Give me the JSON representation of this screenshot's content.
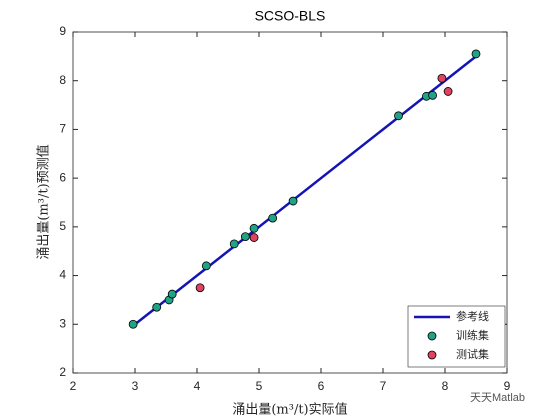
{
  "chart_data": {
    "type": "scatter",
    "title": "SCSO-BLS",
    "x_label": "涌出量(m³/t)实际值",
    "y_label": "涌出量(m³/t)预测值",
    "xlim": [
      2,
      9
    ],
    "ylim": [
      2,
      9
    ],
    "xticks": [
      2,
      3,
      4,
      5,
      6,
      7,
      8,
      9
    ],
    "yticks": [
      2,
      3,
      4,
      5,
      6,
      7,
      8,
      9
    ],
    "legend": "lower right",
    "series": [
      {
        "name": "参考线",
        "mode": "line",
        "color": "#1414b4",
        "x": [
          2.97,
          8.5
        ],
        "values": [
          2.97,
          8.5
        ]
      },
      {
        "name": "训练集",
        "mode": "marker",
        "color": "#1fa386",
        "x": [
          2.97,
          3.35,
          3.55,
          3.6,
          4.15,
          4.6,
          4.78,
          4.92,
          5.22,
          5.55,
          7.25,
          7.7,
          7.8,
          8.5
        ],
        "values": [
          3.0,
          3.35,
          3.5,
          3.62,
          4.2,
          4.65,
          4.8,
          4.97,
          5.18,
          5.53,
          7.28,
          7.68,
          7.7,
          8.55
        ]
      },
      {
        "name": "测试集",
        "mode": "marker",
        "color": "#e0435f",
        "x": [
          4.05,
          4.92,
          7.95,
          8.05
        ],
        "values": [
          3.75,
          4.78,
          8.05,
          7.78
        ]
      }
    ],
    "watermark": "天天Matlab"
  }
}
